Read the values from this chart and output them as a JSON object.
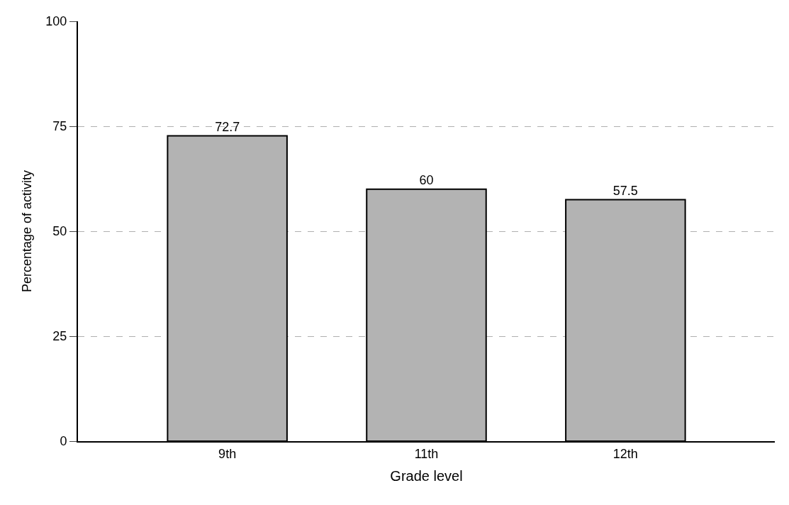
{
  "chart_data": {
    "type": "bar",
    "xlabel": "Grade level",
    "ylabel": "Percentage of activity",
    "categories": [
      "9th",
      "11th",
      "12th"
    ],
    "values": [
      72.7,
      60,
      57.5
    ],
    "color": "#b3b3b3",
    "ylim": [
      0,
      100
    ],
    "yticks": [
      0,
      25,
      50,
      75,
      100
    ],
    "grid": "y",
    "data_labels": true
  }
}
